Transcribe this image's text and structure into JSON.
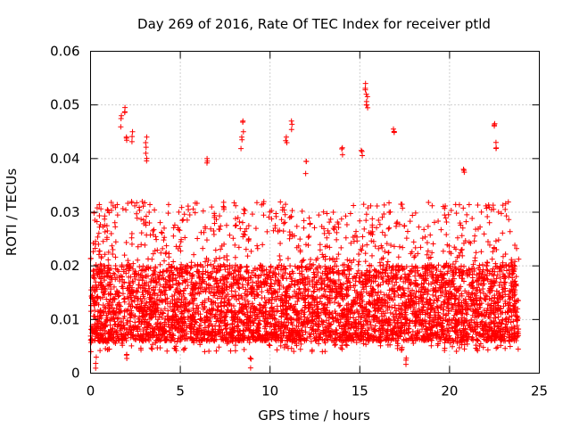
{
  "chart_data": {
    "type": "scatter",
    "title": "Day 269 of 2016, Rate Of TEC Index for receiver ptld",
    "xlabel": "GPS time / hours",
    "ylabel": "ROTI / TECUs",
    "xlim": [
      0,
      25
    ],
    "ylim": [
      0,
      0.06
    ],
    "xticks": [
      0,
      5,
      10,
      15,
      20,
      25
    ],
    "xtick_labels": [
      "0",
      "5",
      "10",
      "15",
      "20",
      "25"
    ],
    "yticks": [
      0,
      0.01,
      0.02,
      0.03,
      0.04,
      0.05,
      0.06
    ],
    "ytick_labels": [
      "0",
      "0.01",
      "0.02",
      "0.03",
      "0.04",
      "0.05",
      "0.06"
    ],
    "grid": true,
    "marker": "plus",
    "series": [
      {
        "name": "ROTI",
        "color": "#ff0000",
        "x_range": [
          0,
          23.85
        ],
        "baseline_range": [
          0.006,
          0.025
        ],
        "typical_peak": 0.032,
        "points": [
          {
            "x": 1.7,
            "y": 0.048
          },
          {
            "x": 1.9,
            "y": 0.0495
          },
          {
            "x": 2.0,
            "y": 0.044
          },
          {
            "x": 2.3,
            "y": 0.045
          },
          {
            "x": 3.1,
            "y": 0.044
          },
          {
            "x": 3.1,
            "y": 0.041
          },
          {
            "x": 6.5,
            "y": 0.04
          },
          {
            "x": 8.5,
            "y": 0.047
          },
          {
            "x": 8.4,
            "y": 0.044
          },
          {
            "x": 10.9,
            "y": 0.044
          },
          {
            "x": 11.2,
            "y": 0.047
          },
          {
            "x": 12.0,
            "y": 0.0395
          },
          {
            "x": 14.0,
            "y": 0.042
          },
          {
            "x": 15.3,
            "y": 0.054
          },
          {
            "x": 15.4,
            "y": 0.052
          },
          {
            "x": 15.4,
            "y": 0.05
          },
          {
            "x": 15.1,
            "y": 0.0415
          },
          {
            "x": 16.9,
            "y": 0.0455
          },
          {
            "x": 20.8,
            "y": 0.038
          },
          {
            "x": 22.5,
            "y": 0.0465
          },
          {
            "x": 22.6,
            "y": 0.043
          },
          {
            "x": 2.0,
            "y": 0.0035
          },
          {
            "x": 0.3,
            "y": 0.003
          },
          {
            "x": 8.9,
            "y": 0.0028
          },
          {
            "x": 17.6,
            "y": 0.0028
          }
        ]
      }
    ]
  }
}
